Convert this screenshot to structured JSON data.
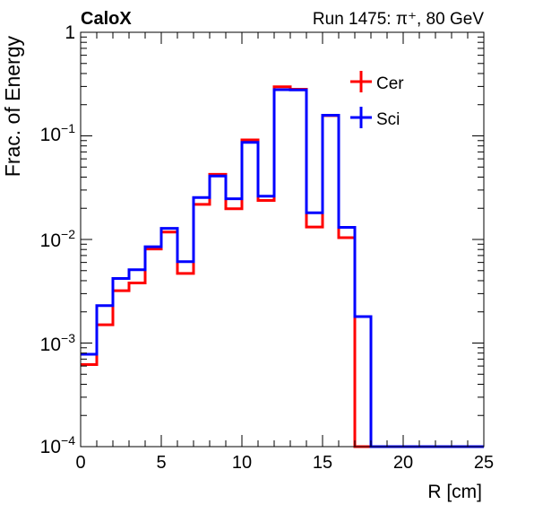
{
  "chart_data": {
    "type": "line",
    "style": "step-histogram",
    "title_left": "CaloX",
    "title_right": "Run 1475: π⁺, 80 GeV",
    "xlabel": "R [cm]",
    "ylabel": "Frac. of Energy",
    "xlim": [
      0,
      25
    ],
    "ylim": [
      0.0001,
      1
    ],
    "yscale": "log",
    "x_ticks": [
      "0",
      "5",
      "10",
      "15",
      "20",
      "25"
    ],
    "y_ticks": [
      {
        "base": "10",
        "exp": "−4"
      },
      {
        "base": "10",
        "exp": "−3"
      },
      {
        "base": "10",
        "exp": "−2"
      },
      {
        "base": "10",
        "exp": "−1"
      },
      {
        "base": "1",
        "exp": ""
      }
    ],
    "legend_position": "top-right",
    "grid": false,
    "bin_edges": [
      0,
      1,
      2,
      3,
      4,
      5,
      6,
      7,
      8,
      9,
      10,
      11,
      12,
      13,
      14,
      15,
      16,
      17,
      18,
      19,
      20,
      21,
      22,
      23,
      24,
      25
    ],
    "series": [
      {
        "name": "Cer",
        "color": "#ff0000",
        "values": [
          0.00062,
          0.0015,
          0.0032,
          0.0038,
          0.0081,
          0.0118,
          0.0047,
          0.0218,
          0.0425,
          0.0198,
          0.0915,
          0.0238,
          0.298,
          0.282,
          0.0132,
          0.157,
          0.0104,
          0.0,
          0,
          0,
          0,
          0,
          0,
          0,
          0
        ]
      },
      {
        "name": "Sci",
        "color": "#0000ff",
        "values": [
          0.00078,
          0.0023,
          0.0042,
          0.0051,
          0.0085,
          0.0128,
          0.0061,
          0.0254,
          0.041,
          0.0247,
          0.0865,
          0.0262,
          0.279,
          0.278,
          0.0181,
          0.158,
          0.0131,
          0.0018,
          0,
          0,
          0,
          0,
          0,
          0,
          0
        ]
      }
    ]
  }
}
